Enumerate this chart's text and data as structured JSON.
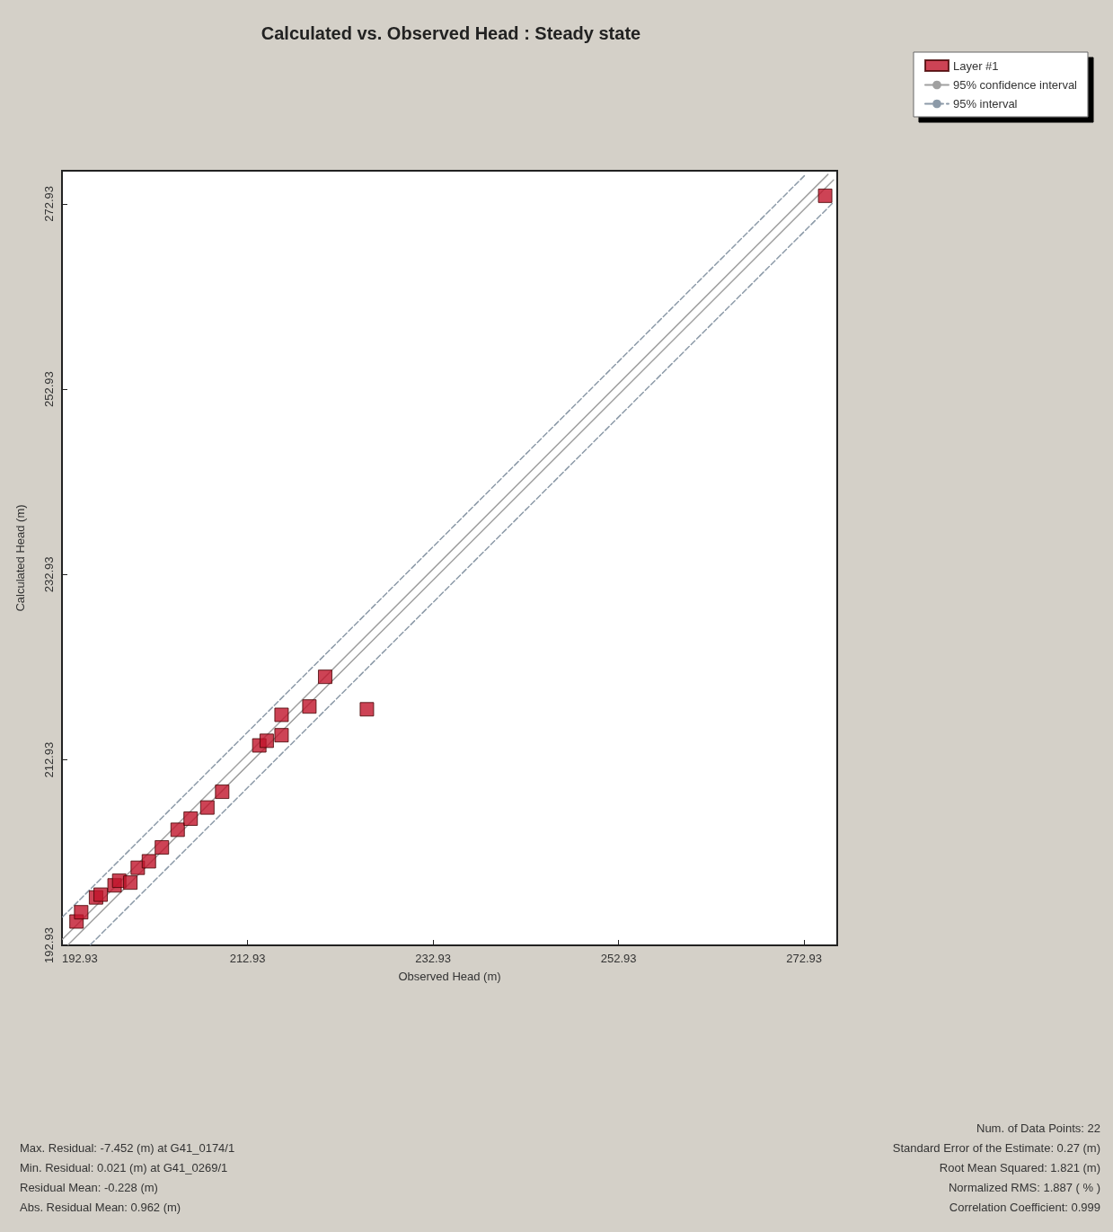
{
  "chart_data": {
    "type": "scatter",
    "title": "Calculated vs. Observed Head : Steady state",
    "xlabel": "Observed Head (m)",
    "ylabel": "Calculated Head (m)",
    "xlim": [
      192.93,
      276.5
    ],
    "ylim": [
      192.93,
      276.5
    ],
    "xticks": [
      192.93,
      212.93,
      232.93,
      252.93,
      272.93
    ],
    "yticks": [
      192.93,
      212.93,
      232.93,
      252.93,
      272.93
    ],
    "grid": false,
    "legend": "top right",
    "marker": "square",
    "series": [
      {
        "name": "Layer #1",
        "color": "#c0142a",
        "x": [
          194.5,
          195.0,
          196.6,
          197.1,
          198.6,
          199.1,
          200.3,
          201.1,
          202.3,
          203.7,
          205.4,
          206.8,
          208.6,
          210.2,
          214.2,
          215.0,
          216.6,
          216.6,
          219.6,
          221.3,
          225.8,
          275.2
        ],
        "values": [
          195.5,
          196.5,
          198.1,
          198.4,
          199.4,
          199.9,
          199.7,
          201.3,
          202.0,
          203.5,
          205.4,
          206.6,
          207.8,
          209.5,
          214.5,
          215.0,
          215.6,
          217.8,
          218.7,
          221.9,
          218.4,
          273.8
        ]
      },
      {
        "name": "95% confidence interval",
        "type": "line",
        "color": "#a0a0a0",
        "marker": "none",
        "line_style": "solid",
        "x": [
          193,
          275.5
        ],
        "values": [
          193.6,
          276.1
        ]
      },
      {
        "type": "line",
        "color": "#a0a0a0",
        "marker": "none",
        "line_style": "solid",
        "x": [
          193.6,
          276.1
        ],
        "values": [
          193,
          275.5
        ]
      },
      {
        "name": "95% interval",
        "type": "line",
        "color": "#8c9aa8",
        "marker": "none",
        "line_style": "dashed",
        "x": [
          193,
          273.1
        ],
        "values": [
          196,
          276.1
        ]
      },
      {
        "type": "line",
        "color": "#8c9aa8",
        "marker": "none",
        "line_style": "dashed",
        "x": [
          196,
          276.1
        ],
        "values": [
          193,
          273.1
        ]
      }
    ],
    "annotations": [
      "Max. Residual: -7.452 (m) at G41_0174/1",
      "Min. Residual: 0.021 (m) at G41_0269/1",
      "Residual Mean: -0.228 (m)",
      "Abs. Residual Mean: 0.962 (m)",
      "Num. of Data Points: 22",
      "Standard Error of the Estimate: 0.27 (m)",
      "Root Mean Squared: 1.821 (m)",
      "Normalized RMS: 1.887 ( % )",
      "Correlation Coefficient: 0.999"
    ]
  }
}
